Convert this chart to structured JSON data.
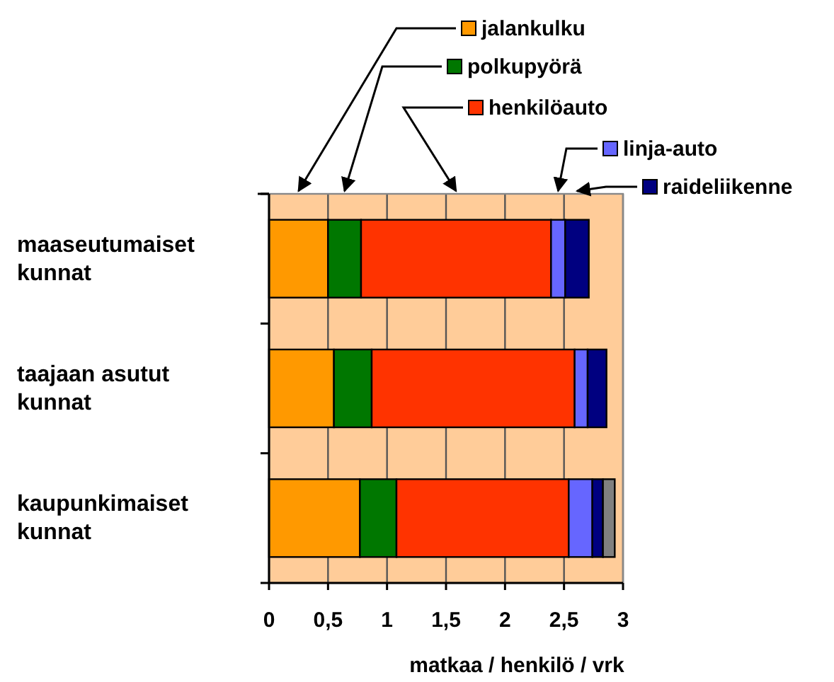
{
  "chart_data": {
    "type": "bar",
    "orientation": "horizontal",
    "stacked": true,
    "xlabel": "matkaa / henkilö / vrk",
    "categories": [
      "maaseutumaiset kunnat",
      "taajaan asutut kunnat",
      "kaupunkimaiset kunnat"
    ],
    "series": [
      {
        "name": "jalankulku",
        "color": "#ff9900",
        "values": [
          0.5,
          0.55,
          0.77
        ]
      },
      {
        "name": "polkupyörä",
        "color": "#007700",
        "values": [
          0.28,
          0.32,
          0.31
        ]
      },
      {
        "name": "henkilöauto",
        "color": "#ff3300",
        "values": [
          1.61,
          1.72,
          1.46
        ]
      },
      {
        "name": "linja-auto",
        "color": "#6666ff",
        "values": [
          0.12,
          0.11,
          0.2
        ]
      },
      {
        "name": "raideliikenne",
        "color": "#000080",
        "values": [
          0.2,
          0.16,
          0.09
        ]
      },
      {
        "color": "#808080",
        "values": [
          null,
          null,
          0.1
        ]
      }
    ],
    "xlim": [
      0,
      3
    ],
    "xticks": [
      0,
      {
        "value": 0.5,
        "label": "0,5"
      },
      1,
      {
        "value": 1.5,
        "label": "1,5"
      },
      2,
      {
        "value": 2.5,
        "label": "2,5"
      },
      3
    ],
    "grid": "x",
    "legend": "top right"
  }
}
